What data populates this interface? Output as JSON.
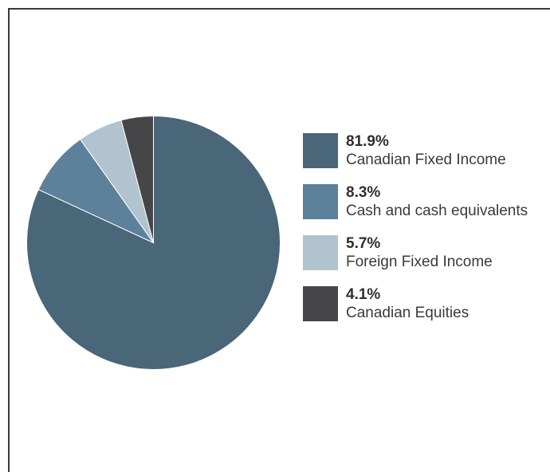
{
  "chart_data": {
    "type": "pie",
    "title": "",
    "start_angle_deg": 0,
    "direction": "clockwise",
    "legend_position": "right",
    "slices": [
      {
        "label": "Canadian Fixed Income",
        "value": 81.9,
        "value_label": "81.9%",
        "color": "#4a6679"
      },
      {
        "label": "Cash and cash equivalents",
        "value": 8.3,
        "value_label": "8.3%",
        "color": "#5d819b"
      },
      {
        "label": "Foreign Fixed Income",
        "value": 5.7,
        "value_label": "5.7%",
        "color": "#b0c3cf"
      },
      {
        "label": "Canadian Equities",
        "value": 4.1,
        "value_label": "4.1%",
        "color": "#464649"
      }
    ]
  }
}
